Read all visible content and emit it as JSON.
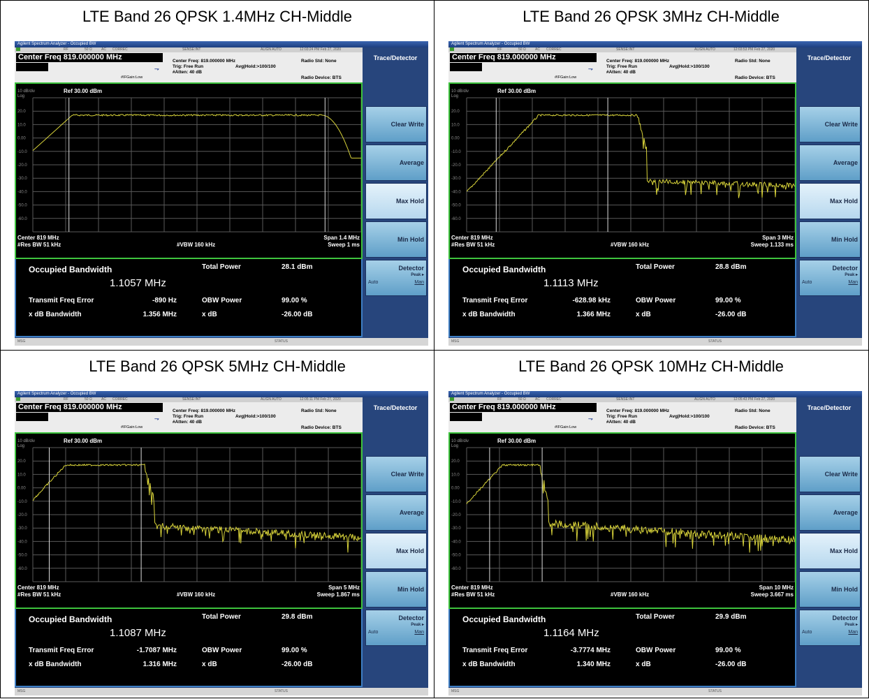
{
  "common": {
    "app_title": "Agilent Spectrum Analyzer - Occupied BW",
    "status_rf": "RF",
    "status_ohm": "50 Ω",
    "status_ac": "AC",
    "status_correc": "CORREC",
    "status_sense": "SENSE:INT",
    "status_align": "ALIGN AUTO",
    "center_freq_line": "Center Freq 819.000000 MHz",
    "center_freq_small": "Center Freq: 819.000000 MHz",
    "trig": "Trig: Free Run",
    "avg_hold": "Avg|Hold:>100/100",
    "ifgain": "#IFGain:Low",
    "atten": "#Atten: 40 dB",
    "radio_std": "Radio Std: None",
    "radio_device": "Radio Device: BTS",
    "panel_title": "Trace/Detector",
    "softkeys": [
      "Clear Write",
      "Average",
      "Max Hold",
      "Min Hold"
    ],
    "detector_label": "Detector",
    "detector_peak": "Peak ▸",
    "detector_auto": "Auto",
    "detector_man": "Man",
    "scale": "10 dB/div",
    "log": "Log",
    "ref": "Ref 30.00 dBm",
    "y_ticks": [
      "20.0",
      "10.0",
      "0.00",
      "-10.0",
      "-20.0",
      "-30.0",
      "-40.0",
      "-50.0",
      "-60.0"
    ],
    "center": "Center  819 MHz",
    "res_bw": "#Res BW  51 kHz",
    "vbw": "#VBW  160 kHz",
    "occ_bw_label": "Occupied Bandwidth",
    "total_power_label": "Total Power",
    "tfe_label": "Transmit Freq Error",
    "obw_power_label": "OBW Power",
    "xdb_bw_label": "x dB Bandwidth",
    "xdb_label": "x dB",
    "msg": "MSG",
    "status": "STATUS",
    "trace_color": "#d8d33a",
    "grid_color": "#5a5a5a",
    "frame_color": "#3ec43e"
  },
  "panels": [
    {
      "title": "LTE Band 26 QPSK 1.4MHz CH-Middle",
      "time": "12:03:24 PM Feb 27, 2020",
      "span": "Span 1.4 MHz",
      "sweep": "Sweep  1 ms",
      "occ_bw": "1.1057 MHz",
      "total_power": "28.1 dBm",
      "tfe": "-890 Hz",
      "obw_power": "99.00 %",
      "xdb_bw": "1.356 MHz",
      "xdb": "-26.00 dB",
      "shape": "narrow"
    },
    {
      "title": "LTE Band 26 QPSK 3MHz CH-Middle",
      "time": "12:03:53 PM Feb 27, 2020",
      "span": "Span 3 MHz",
      "sweep": "Sweep  1.133 ms",
      "occ_bw": "1.1113 MHz",
      "total_power": "28.8 dBm",
      "tfe": "-628.98 kHz",
      "obw_power": "99.00 %",
      "xdb_bw": "1.366 MHz",
      "xdb": "-26.00 dB",
      "shape": "medium"
    },
    {
      "title": "LTE Band 26 QPSK 5MHz CH-Middle",
      "time": "12:05:11 PM Feb 27, 2020",
      "span": "Span 5 MHz",
      "sweep": "Sweep  1.867 ms",
      "occ_bw": "1.1087 MHz",
      "total_power": "29.8 dBm",
      "tfe": "-1.7087 MHz",
      "obw_power": "99.00 %",
      "xdb_bw": "1.316 MHz",
      "xdb": "-26.00 dB",
      "shape": "wide"
    },
    {
      "title": "LTE Band 26 QPSK 10MHz CH-Middle",
      "time": "12:05:43 PM Feb 27, 2020",
      "span": "Span 10 MHz",
      "sweep": "Sweep  3.667 ms",
      "occ_bw": "1.1164 MHz",
      "total_power": "29.9 dBm",
      "tfe": "-3.7774 MHz",
      "obw_power": "99.00 %",
      "xdb_bw": "1.340 MHz",
      "xdb": "-26.00 dB",
      "shape": "widest"
    }
  ]
}
